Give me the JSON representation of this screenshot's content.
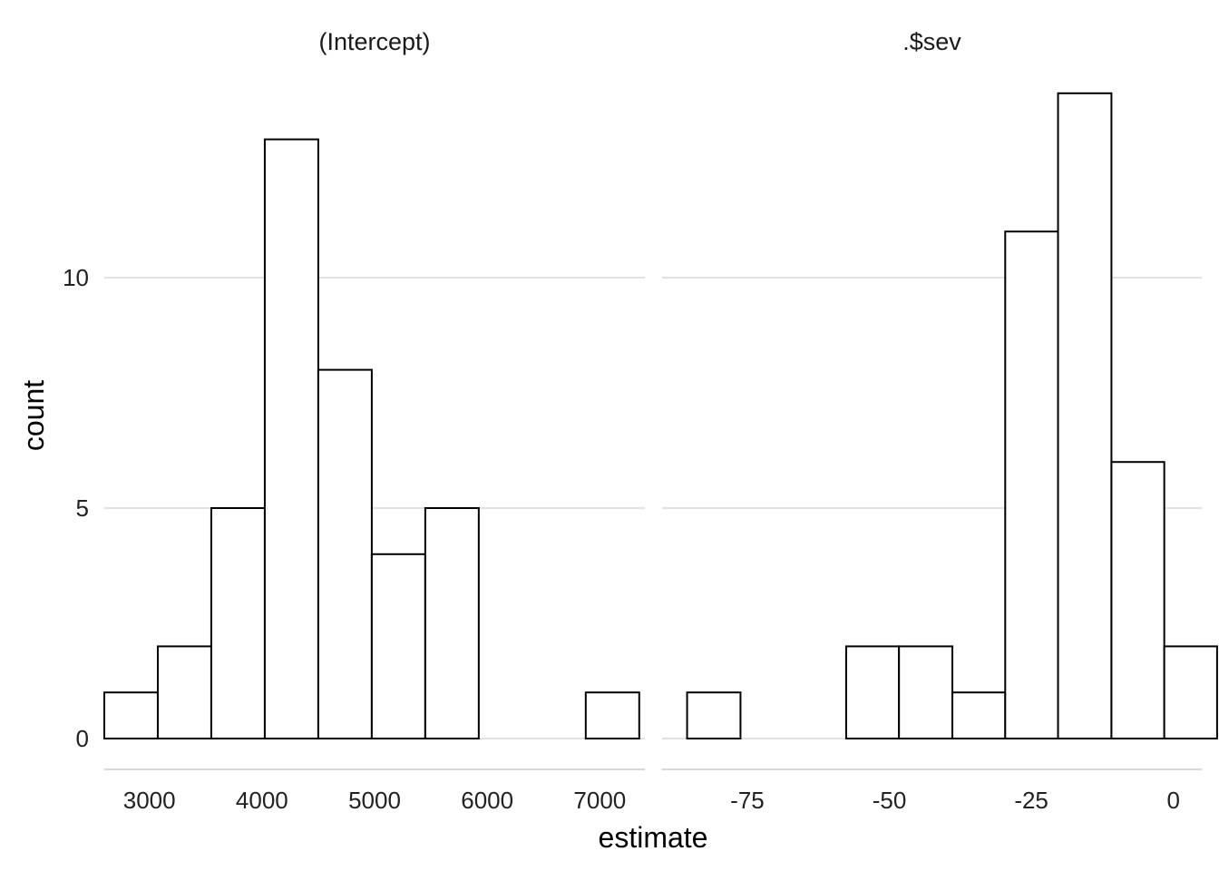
{
  "chart_data": {
    "type": "bar",
    "subtype": "faceted histogram",
    "xlabel": "estimate",
    "ylabel": "count",
    "grid": true,
    "legend": "none",
    "colors": {
      "bar_fill": "#ffffff",
      "bar_stroke": "#000000",
      "grid": "#d9d9d9"
    },
    "y_range": [
      0,
      14
    ],
    "y_ticks": [
      0,
      5,
      10
    ],
    "panels": [
      {
        "title": "(Intercept)",
        "x_range": [
          2600,
          7400
        ],
        "x_ticks": [
          3000,
          4000,
          5000,
          6000,
          7000
        ],
        "bins": [
          {
            "x0": 2600,
            "x1": 3075,
            "count": 1
          },
          {
            "x0": 3075,
            "x1": 3550,
            "count": 2
          },
          {
            "x0": 3550,
            "x1": 4025,
            "count": 5
          },
          {
            "x0": 4025,
            "x1": 4500,
            "count": 13
          },
          {
            "x0": 4500,
            "x1": 4975,
            "count": 8
          },
          {
            "x0": 4975,
            "x1": 5450,
            "count": 4
          },
          {
            "x0": 5450,
            "x1": 5925,
            "count": 5
          },
          {
            "x0": 5925,
            "x1": 6400,
            "count": 0
          },
          {
            "x0": 6400,
            "x1": 6875,
            "count": 0
          },
          {
            "x0": 6875,
            "x1": 7350,
            "count": 1
          }
        ]
      },
      {
        "title": ".$sev",
        "x_range": [
          -90,
          5
        ],
        "x_ticks": [
          -75,
          -50,
          -25,
          0
        ],
        "bins": [
          {
            "x0": -85.6,
            "x1": -76.2,
            "count": 1
          },
          {
            "x0": -76.2,
            "x1": -66.9,
            "count": 0
          },
          {
            "x0": -66.9,
            "x1": -57.6,
            "count": 0
          },
          {
            "x0": -57.6,
            "x1": -48.3,
            "count": 2
          },
          {
            "x0": -48.3,
            "x1": -38.9,
            "count": 2
          },
          {
            "x0": -38.9,
            "x1": -29.6,
            "count": 1
          },
          {
            "x0": -29.6,
            "x1": -20.3,
            "count": 11
          },
          {
            "x0": -20.3,
            "x1": -10.9,
            "count": 14
          },
          {
            "x0": -10.9,
            "x1": -1.6,
            "count": 6
          },
          {
            "x0": -1.6,
            "x1": 7.7,
            "count": 2
          }
        ]
      }
    ]
  }
}
